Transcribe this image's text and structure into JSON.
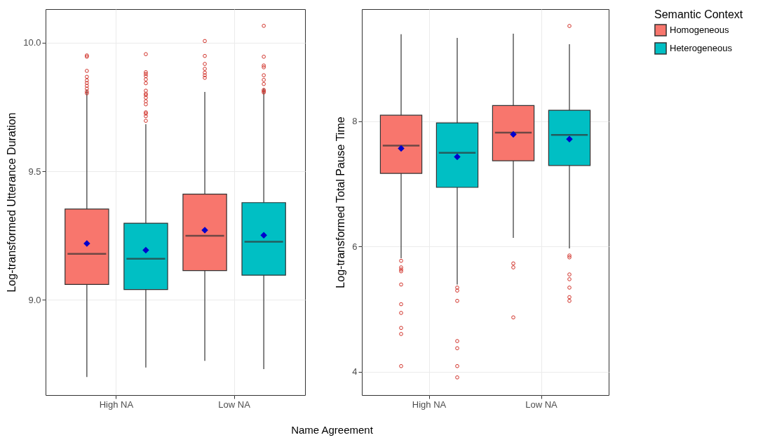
{
  "chart_data": [
    {
      "type": "box",
      "ylabel": "Log-transformed Utterance Duration",
      "xlabel": "Name Agreement",
      "categories": [
        "High NA",
        "Low NA"
      ],
      "ylim": [
        8.63,
        10.13
      ],
      "yticks": [
        {
          "value": 9,
          "label": "9.0"
        },
        {
          "value": 9.5,
          "label": "9.5"
        },
        {
          "value": 10,
          "label": "10.0"
        }
      ],
      "grid": true,
      "legend": false,
      "series": [
        {
          "color": "#f8766d",
          "boxes": [
            {
              "low": 8.7,
              "q1": 9.06,
              "median": 9.179,
              "q3": 9.353,
              "high": 9.817,
              "mean": 9.219,
              "outliers": [
                9.95,
                9.945,
                9.89,
                9.867,
                9.853,
                9.843,
                9.832,
                9.821,
                9.81,
                9.803
              ]
            },
            {
              "low": 8.763,
              "q1": 9.114,
              "median": 9.249,
              "q3": 9.411,
              "high": 9.808,
              "mean": 9.271,
              "outliers": [
                10.006,
                9.948,
                9.917,
                9.898,
                9.883,
                9.873,
                9.863
              ]
            }
          ]
        },
        {
          "color": "#00bfc4",
          "boxes": [
            {
              "low": 8.737,
              "q1": 9.04,
              "median": 9.16,
              "q3": 9.298,
              "high": 9.683,
              "mean": 9.193,
              "outliers": [
                9.955,
                9.885,
                9.878,
                9.87,
                9.857,
                9.842,
                9.813,
                9.801,
                9.796,
                9.786,
                9.772,
                9.76,
                9.729,
                9.724,
                9.714,
                9.696
              ]
            },
            {
              "low": 8.731,
              "q1": 9.096,
              "median": 9.226,
              "q3": 9.378,
              "high": 9.822,
              "mean": 9.251,
              "outliers": [
                10.065,
                9.945,
                9.911,
                9.904,
                9.873,
                9.855,
                9.839,
                9.816,
                9.811,
                9.806
              ]
            }
          ]
        }
      ]
    },
    {
      "type": "box",
      "ylabel": "Log-transformed Total Pause Time",
      "categories": [
        "High NA",
        "Low NA"
      ],
      "ylim": [
        3.63,
        9.79
      ],
      "yticks": [
        4,
        6,
        8
      ],
      "grid": true,
      "legend": "right",
      "legend_title": "Semantic Context",
      "series": [
        {
          "name": "Homogeneous",
          "color": "#f8766d",
          "boxes": [
            {
              "low": 5.815,
              "q1": 7.168,
              "median": 7.613,
              "q3": 8.097,
              "high": 9.391,
              "mean": 7.567,
              "outliers": [
                5.773,
                5.668,
                5.634,
                5.605,
                5.395,
                5.08,
                4.941,
                4.702,
                4.605,
                4.092
              ]
            },
            {
              "low": 6.139,
              "q1": 7.37,
              "median": 7.819,
              "q3": 8.252,
              "high": 9.399,
              "mean": 7.79,
              "outliers": [
                5.731,
                5.668,
                4.87
              ]
            }
          ]
        },
        {
          "name": "Heterogeneous",
          "color": "#00bfc4",
          "boxes": [
            {
              "low": 5.395,
              "q1": 6.945,
              "median": 7.496,
              "q3": 7.975,
              "high": 9.332,
              "mean": 7.433,
              "outliers": [
                5.345,
                5.298,
                5.134,
                4.492,
                4.378,
                4.092,
                3.912
              ]
            },
            {
              "low": 5.971,
              "q1": 7.294,
              "median": 7.782,
              "q3": 8.176,
              "high": 9.231,
              "mean": 7.714,
              "outliers": [
                9.521,
                5.857,
                5.828,
                5.555,
                5.479,
                5.345,
                5.193,
                5.134
              ]
            }
          ]
        }
      ]
    }
  ]
}
